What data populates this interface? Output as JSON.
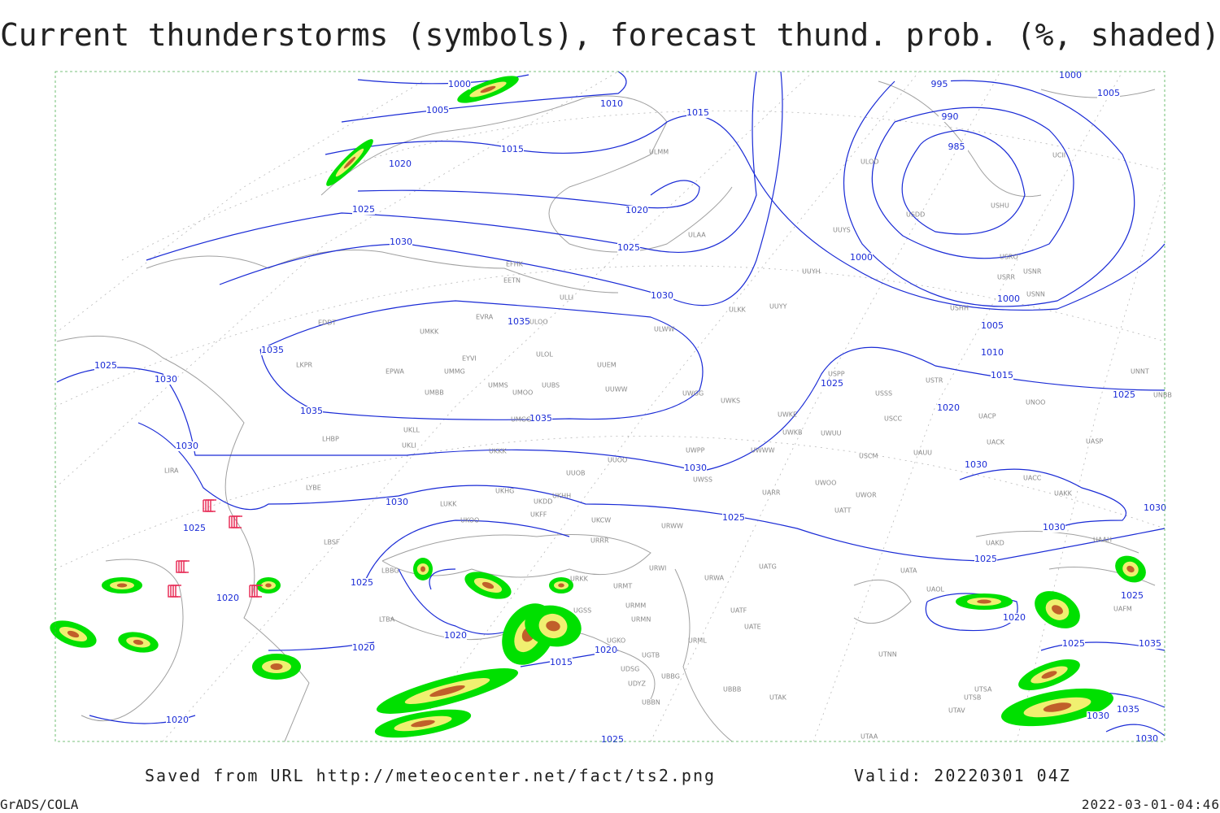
{
  "title": "Current thunderstorms (symbols), forecast thund. prob. (%, shaded)",
  "footer": {
    "saved": "Saved from URL http://meteocenter.net/fact/ts2.png",
    "valid": "Valid: 20220301 04Z",
    "software": "GrADS/COLA",
    "timestamp": "2022-03-01-04:46"
  },
  "isobar_labels": [
    1000,
    1005,
    1010,
    1015,
    1015,
    1020,
    1020,
    1025,
    1025,
    1030,
    1030,
    1035,
    1035,
    1025,
    1030,
    1035,
    1035,
    1030,
    1030,
    1030,
    1025,
    1025,
    1025,
    1020,
    1020,
    1020,
    1020,
    1015,
    1020,
    995,
    990,
    985,
    1000,
    1000,
    1005,
    1010,
    1015,
    1020,
    1025,
    1025,
    1030,
    1030,
    1030,
    1025,
    1020,
    1025,
    1025,
    1035,
    1030,
    1035,
    1030,
    1025,
    1000,
    1005
  ],
  "stations": [
    "ULMM",
    "ULOD",
    "UUYS",
    "ULAA",
    "UUYH",
    "EFHK",
    "EETN",
    "ULLI",
    "ULKK",
    "UUYY",
    "EVRA",
    "ULOO",
    "ULWW",
    "EDDT",
    "UMKK",
    "ULOL",
    "EYVI",
    "UUEM",
    "LKPR",
    "EPWA",
    "UMMG",
    "UMMS",
    "UUBS",
    "UMOO",
    "UUWW",
    "UWGG",
    "UWKS",
    "UMBB",
    "UWKE",
    "USPP",
    "USSS",
    "USTR",
    "UNOO",
    "UNNT",
    "UNBB",
    "USCC",
    "UACP",
    "UWKB",
    "UWUU",
    "UMGG",
    "UKLL",
    "UKLI",
    "LHBP",
    "UKKK",
    "UUOO",
    "UWPP",
    "UWWW",
    "USCM",
    "UAUU",
    "UACK",
    "UASP",
    "LIRA",
    "UUOB",
    "UWSS",
    "UKHG",
    "UKHH",
    "UKDD",
    "UARR",
    "UWOO",
    "UWOR",
    "UACC",
    "UAKK",
    "LYBE",
    "LUKK",
    "URWW",
    "UATT",
    "UKOO",
    "UKCW",
    "UKFF",
    "LBSF",
    "URRR",
    "UAKD",
    "UAAH",
    "LBBG",
    "URWI",
    "UATG",
    "UATA",
    "UAOL",
    "URKK",
    "URMT",
    "URWA",
    "URMM",
    "UGSS",
    "UATF",
    "LTBA",
    "URMN",
    "UATE",
    "UAFM",
    "UGKO",
    "URML",
    "UTNN",
    "UGTB",
    "UDSG",
    "UBBG",
    "UBBB",
    "UTAK",
    "UDYZ",
    "UBBN",
    "UTSA",
    "UTSB",
    "UTAV",
    "UTAA",
    "USDD",
    "USHU",
    "UCII",
    "USRO",
    "USRR",
    "USNR",
    "USNN",
    "USHH"
  ]
}
